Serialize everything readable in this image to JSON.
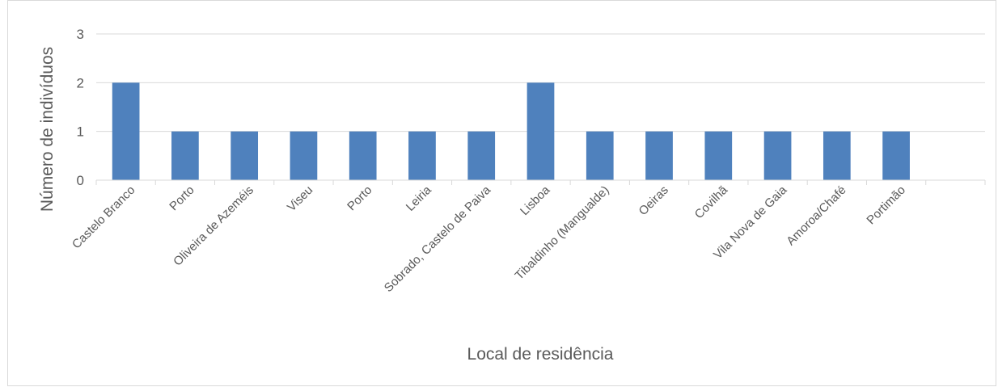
{
  "chart_data": {
    "type": "bar",
    "xlabel": "Local de residência",
    "ylabel": "Número de indivíduos",
    "ylim": [
      0,
      3
    ],
    "yticks": [
      0,
      1,
      2,
      3
    ],
    "grid": true,
    "bar_color": "#4f81bd",
    "categories": [
      "Castelo Branco",
      "Porto",
      "Oliveira de Azeméis",
      "Viseu",
      "Porto",
      "Leiria",
      "Sobrado, Castelo de Paiva",
      "Lisboa",
      "Tibaldinho (Mangualde)",
      "Oeiras",
      "Covilhã",
      "Vila Nova de Gaia",
      "Amoroa/Chafé",
      "Portimão",
      ""
    ],
    "values": [
      2,
      1,
      1,
      1,
      1,
      1,
      1,
      2,
      1,
      1,
      1,
      1,
      1,
      1,
      null
    ]
  }
}
